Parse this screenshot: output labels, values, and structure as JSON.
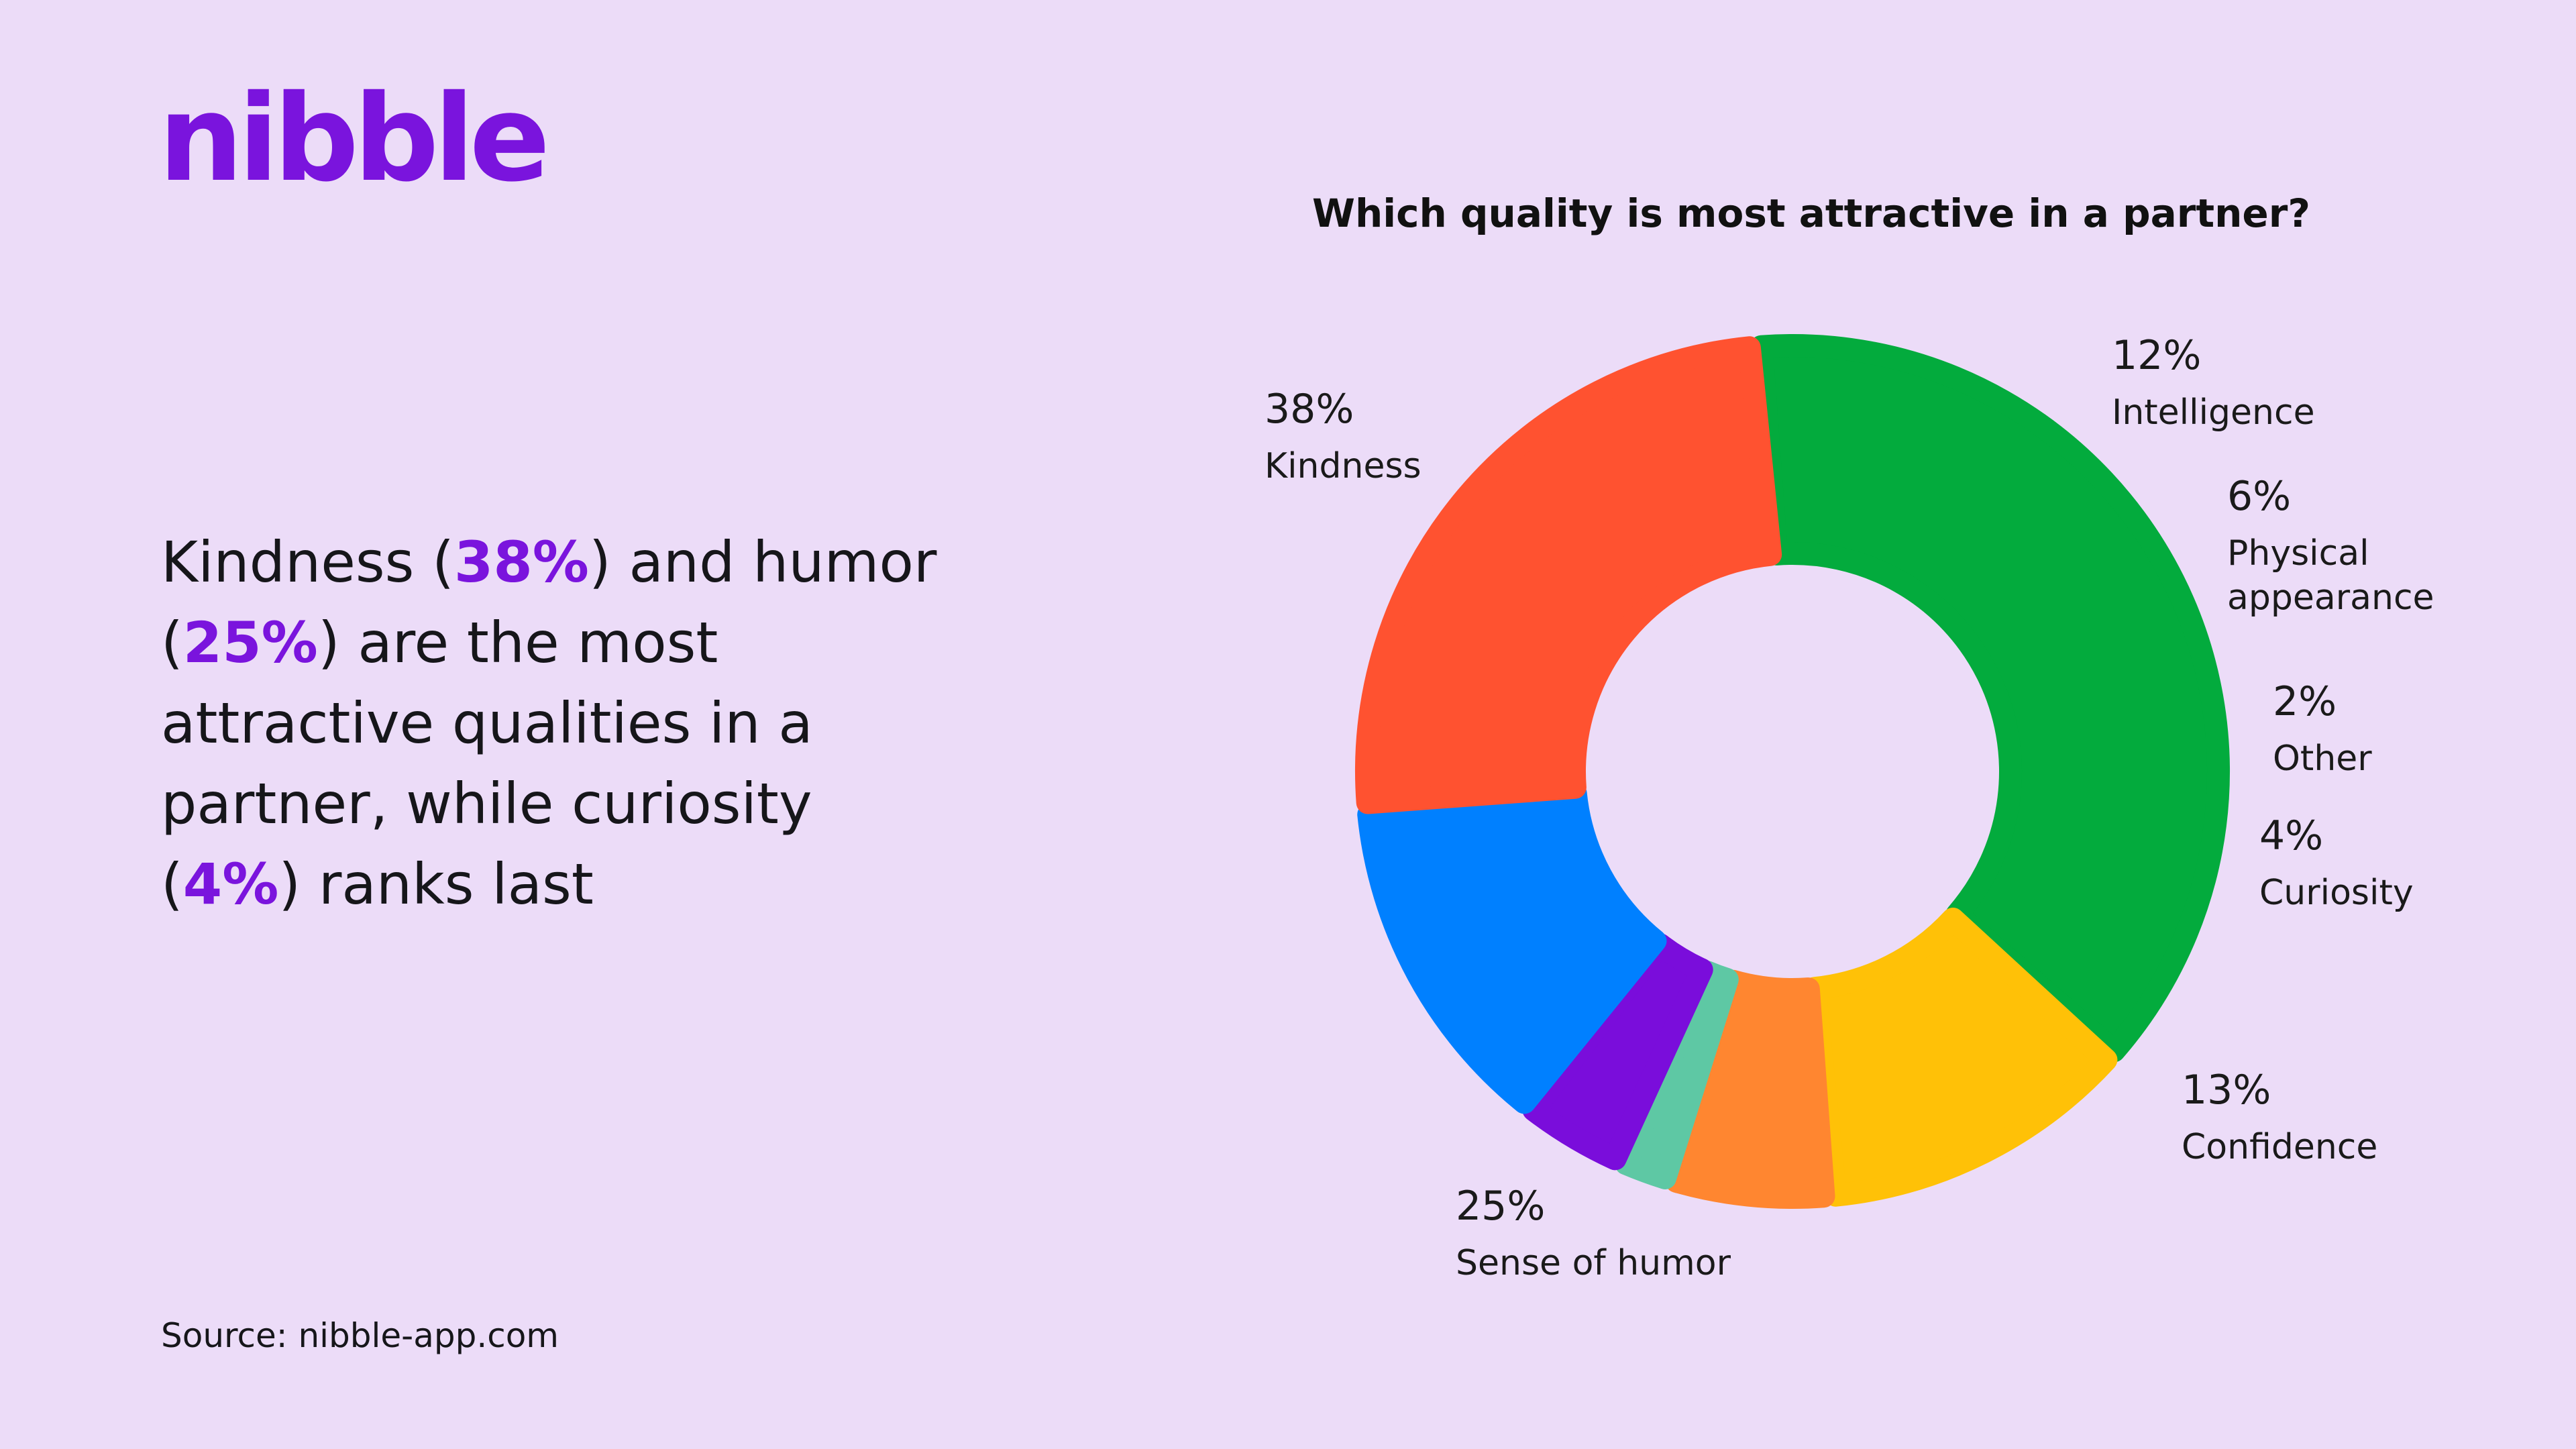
{
  "brand": {
    "logo_text": "nibble",
    "accent_color": "#7a14dd"
  },
  "headline": {
    "part1": "Kindness (",
    "hl1": "38%",
    "part2": ") and humor (",
    "hl2": "25%",
    "part3": ") are the most attractive qualities in a partner, while curiosity (",
    "hl3": "4%",
    "part4": ") ranks last"
  },
  "source": "Source: nibble-app.com",
  "chart_data": {
    "type": "pie",
    "donut": true,
    "title": "Which quality is most attractive in a partner?",
    "categories": [
      "Kindness",
      "Intelligence",
      "Physical appearance",
      "Other",
      "Curiosity",
      "Confidence",
      "Sense of humor"
    ],
    "values": [
      38,
      12,
      6,
      2,
      4,
      13,
      25
    ],
    "labels": [
      "38%",
      "12%",
      "6%",
      "2%",
      "4%",
      "13%",
      "25%"
    ],
    "name_lines": [
      [
        "Kindness"
      ],
      [
        "Intelligence"
      ],
      [
        "Physical",
        "appearance"
      ],
      [
        "Other"
      ],
      [
        "Curiosity"
      ],
      [
        "Confidence"
      ],
      [
        "Sense of humor"
      ]
    ],
    "colors": [
      "#03ab3d",
      "#ffc107",
      "#ff8630",
      "#5ec8a4",
      "#7a0ddb",
      "#0080ff",
      "#ff5230"
    ],
    "start_angle_deg": -5,
    "direction": "clockwise",
    "legend": "none"
  }
}
